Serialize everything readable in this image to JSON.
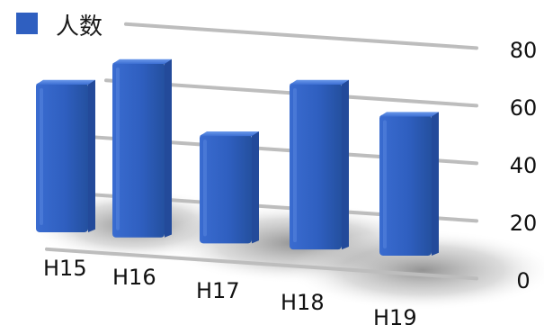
{
  "chart_data": {
    "type": "bar",
    "categories": [
      "H15",
      "H16",
      "H17",
      "H18",
      "H19"
    ],
    "series": [
      {
        "name": "人数",
        "values": [
          70,
          79,
          56,
          76,
          67
        ]
      }
    ],
    "y_ticks": [
      "80",
      "60",
      "40",
      "20",
      "0"
    ],
    "ylim": [
      0,
      80
    ],
    "grid": true,
    "legend": "top-left",
    "colors": {
      "bar": "#2f5fc0",
      "bar_light": "#4f82e0",
      "bar_dark": "#234a9a",
      "grid": "#bdbdbd"
    }
  }
}
